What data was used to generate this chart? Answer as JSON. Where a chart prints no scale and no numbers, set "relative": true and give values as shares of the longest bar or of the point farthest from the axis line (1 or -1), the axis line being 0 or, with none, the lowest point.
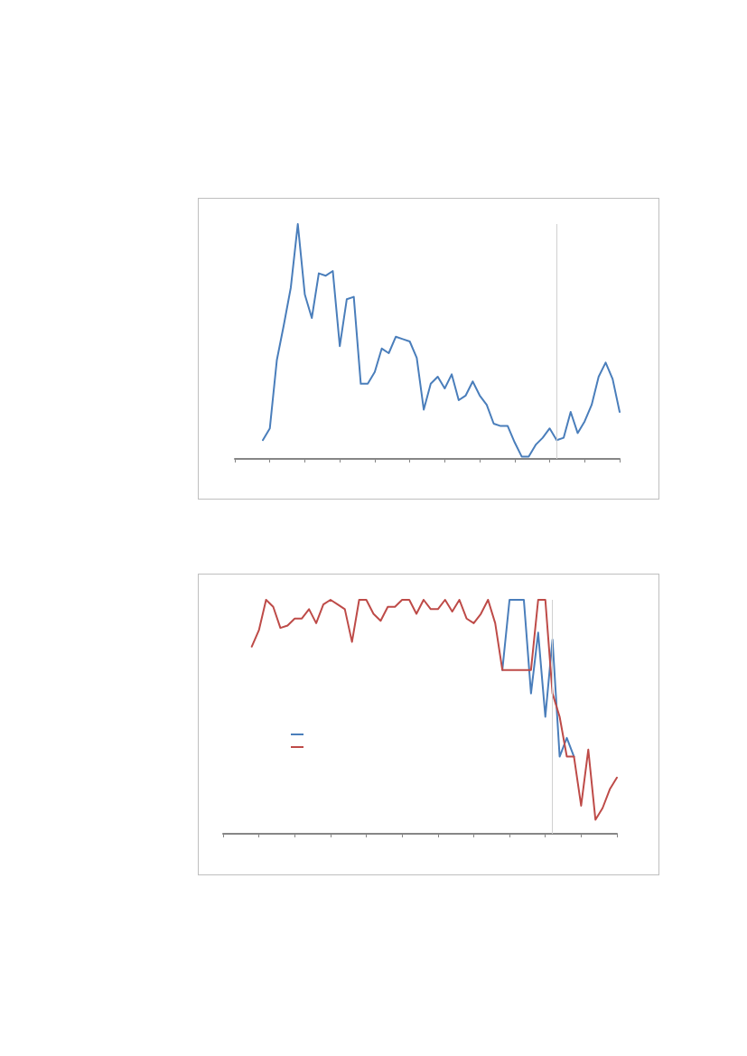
{
  "chart_data": [
    {
      "type": "line",
      "relative": true,
      "grid": false,
      "line_style": "solid",
      "categories": [
        null,
        null,
        null,
        null,
        null,
        null,
        null,
        null,
        null,
        null,
        null,
        null,
        null,
        null,
        null,
        null,
        null,
        null,
        null,
        null,
        null,
        null,
        null,
        null,
        null,
        null,
        null,
        null,
        null,
        null,
        null,
        null,
        null,
        null,
        null,
        null,
        null,
        null,
        null,
        null,
        null,
        null,
        null,
        null,
        null,
        null,
        null,
        null,
        null,
        null,
        null,
        null,
        null,
        null,
        null,
        null
      ],
      "series": [
        {
          "color": "#4a7ebb",
          "values": [
            null,
            null,
            null,
            null,
            0.08,
            0.13,
            0.42,
            0.57,
            0.73,
            1,
            0.7,
            0.6,
            0.79,
            0.78,
            0.8,
            0.48,
            0.68,
            0.69,
            0.32,
            0.32,
            0.37,
            0.47,
            0.45,
            0.52,
            0.51,
            0.5,
            0.43,
            0.21,
            0.32,
            0.35,
            0.3,
            0.36,
            0.25,
            0.27,
            0.33,
            0.27,
            0.23,
            0.15,
            0.14,
            0.14,
            0.07,
            0.01,
            0.01,
            0.06,
            0.09,
            0.13,
            0.08,
            0.09,
            0.2,
            0.11,
            0.16,
            0.23,
            0.35,
            0.41,
            0.34,
            0.2
          ]
        }
      ]
    },
    {
      "type": "line",
      "relative": true,
      "grid": false,
      "line_style": "solid",
      "categories": [
        null,
        null,
        null,
        null,
        null,
        null,
        null,
        null,
        null,
        null,
        null,
        null,
        null,
        null,
        null,
        null,
        null,
        null,
        null,
        null,
        null,
        null,
        null,
        null,
        null,
        null,
        null,
        null,
        null,
        null,
        null,
        null,
        null,
        null,
        null,
        null,
        null,
        null,
        null,
        null,
        null,
        null,
        null,
        null,
        null,
        null,
        null,
        null,
        null,
        null,
        null,
        null,
        null,
        null,
        null,
        null
      ],
      "series": [
        {
          "color": "#4a7ebb",
          "values": [
            null,
            null,
            null,
            null,
            null,
            null,
            null,
            null,
            null,
            null,
            null,
            null,
            null,
            null,
            null,
            null,
            null,
            null,
            null,
            null,
            null,
            null,
            null,
            null,
            null,
            null,
            null,
            null,
            null,
            null,
            null,
            null,
            null,
            null,
            null,
            null,
            null,
            null,
            null,
            0.7,
            1,
            1,
            1,
            0.6,
            0.86,
            0.5,
            0.83,
            0.33,
            0.41,
            0.33,
            null,
            null,
            null,
            null,
            null,
            null
          ]
        },
        {
          "color": "#be4b48",
          "values": [
            null,
            null,
            null,
            null,
            0.8,
            0.87,
            1,
            0.97,
            0.88,
            0.89,
            0.92,
            0.92,
            0.96,
            0.9,
            0.98,
            1,
            0.98,
            0.96,
            0.82,
            1,
            1,
            0.94,
            0.91,
            0.97,
            0.97,
            1,
            1,
            0.94,
            1,
            0.96,
            0.96,
            1,
            0.95,
            1,
            0.92,
            0.9,
            0.94,
            1,
            0.9,
            0.7,
            0.7,
            0.7,
            0.7,
            0.7,
            1,
            1,
            0.6,
            0.5,
            0.33,
            0.33,
            0.12,
            0.36,
            0.06,
            0.11,
            0.19,
            0.24
          ]
        }
      ]
    }
  ]
}
